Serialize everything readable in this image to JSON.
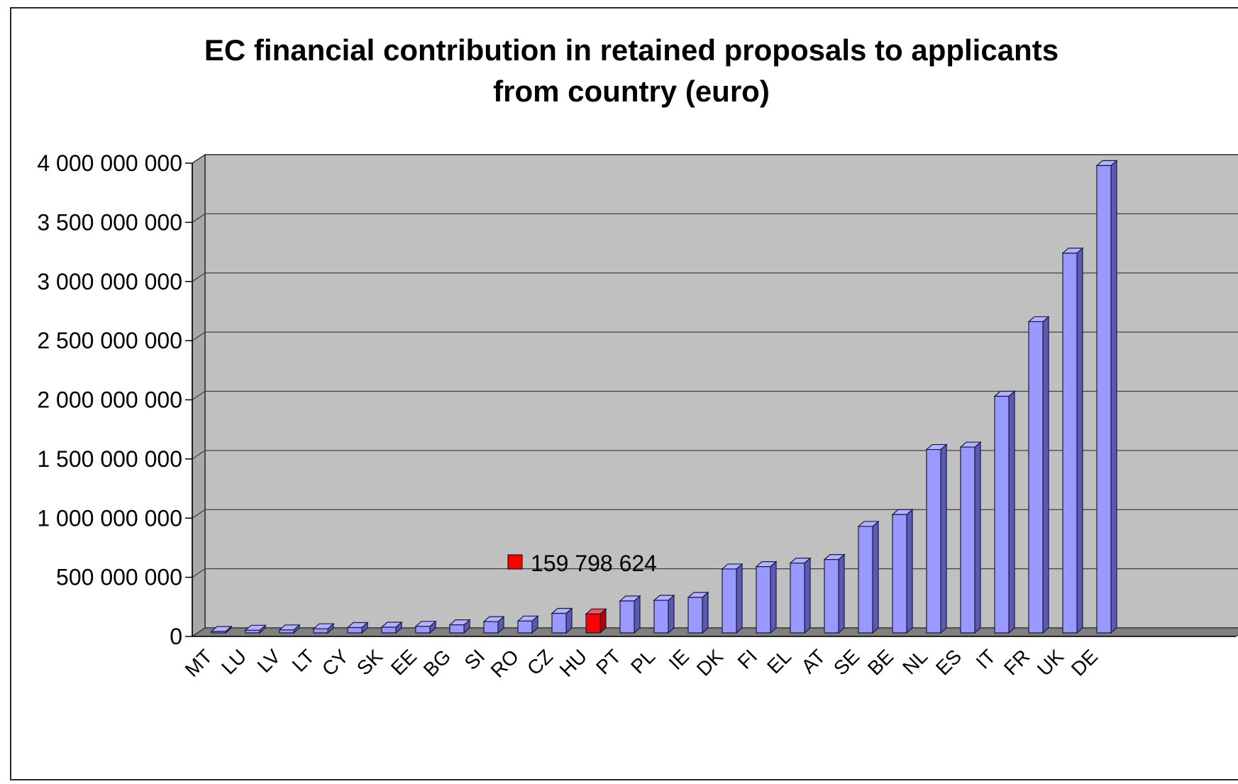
{
  "chart_data": {
    "type": "bar",
    "title_line1": "EC financial contribution in retained proposals to applicants",
    "title_line2": "from country (euro)",
    "xlabel": "",
    "ylabel": "",
    "ylim": [
      0,
      4000000000
    ],
    "y_ticks": [
      0,
      500000000,
      1000000000,
      1500000000,
      2000000000,
      2500000000,
      3000000000,
      3500000000,
      4000000000
    ],
    "y_tick_labels": [
      "0",
      "500 000 000",
      "1 000 000 000",
      "1 500 000 000",
      "2 000 000 000",
      "2 500 000 000",
      "3 000 000 000",
      "3 500 000 000",
      "4 000 000 000"
    ],
    "categories": [
      "MT",
      "LU",
      "LV",
      "LT",
      "CY",
      "SK",
      "EE",
      "BG",
      "SI",
      "RO",
      "CZ",
      "HU",
      "PT",
      "PL",
      "IE",
      "DK",
      "FI",
      "EL",
      "AT",
      "SE",
      "BE",
      "NL",
      "ES",
      "IT",
      "FR",
      "UK",
      "DE"
    ],
    "values": [
      12000000,
      22000000,
      25000000,
      35000000,
      45000000,
      48000000,
      55000000,
      68000000,
      95000000,
      100000000,
      165000000,
      159798624,
      270000000,
      275000000,
      300000000,
      540000000,
      560000000,
      590000000,
      620000000,
      900000000,
      1000000000,
      1550000000,
      1570000000,
      2000000000,
      2630000000,
      3210000000,
      3950000000
    ],
    "highlight_index": 11,
    "highlight_label": "159 798 624",
    "grid": true,
    "legend": "none",
    "style": "3d-column"
  },
  "colors": {
    "bar_front": "#9999ff",
    "bar_top": "#b3b3ff",
    "bar_side": "#5a5ab3",
    "highlight_front": "#ff0000",
    "highlight_top": "#ff5555",
    "highlight_side": "#b30000",
    "plot_back": "#c0c0c0",
    "plot_side": "#a8a8a8",
    "floor": "#808080",
    "grid": "#404040"
  }
}
